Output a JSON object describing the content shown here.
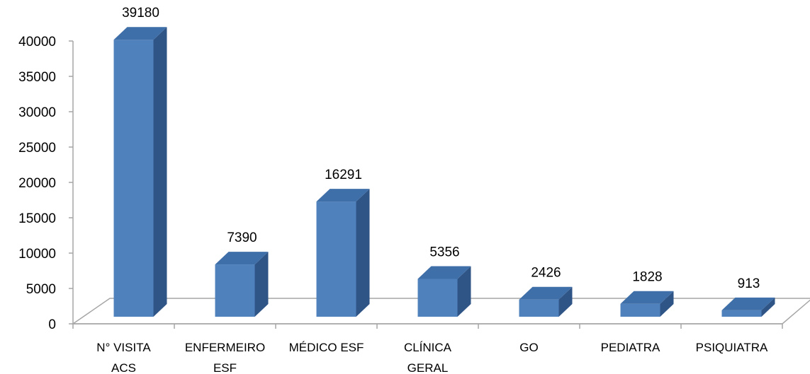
{
  "chart_data": {
    "type": "bar",
    "categories": [
      [
        "N° VISITA",
        "ACS"
      ],
      [
        "ENFERMEIRO",
        "ESF"
      ],
      [
        "MÉDICO ESF"
      ],
      [
        "CLÍNICA",
        "GERAL"
      ],
      [
        "GO"
      ],
      [
        "PEDIATRA"
      ],
      [
        "PSIQUIATRA"
      ]
    ],
    "values": [
      39180,
      7390,
      16291,
      5356,
      2426,
      1828,
      913
    ],
    "y_ticks": [
      "0",
      "5000",
      "10000",
      "15000",
      "20000",
      "25000",
      "30000",
      "35000",
      "40000"
    ],
    "ylim": [
      0,
      40000
    ],
    "grid": false,
    "legend": "none",
    "bar_color": "#4F81BD",
    "bar_side_color": "#2F5486",
    "bar_top_color": "#3F6FA8",
    "floor_color": "#A6A6A6"
  }
}
